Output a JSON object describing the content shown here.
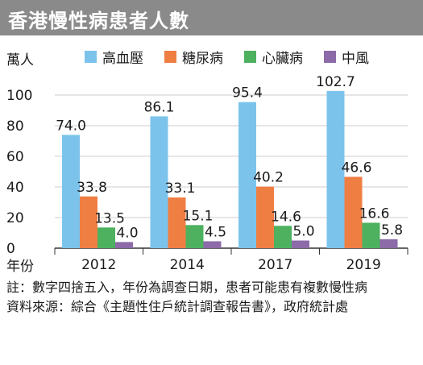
{
  "title": "香港慢性病患者人數",
  "unit_label": "萬人",
  "x_axis_label": "年份",
  "colors": {
    "title_bg": "#8a8a8a",
    "axis": "#333333",
    "grid": "#cccccc"
  },
  "legend": [
    {
      "name": "高血壓",
      "color": "#7cc3ec"
    },
    {
      "name": "糖尿病",
      "color": "#ef7e43"
    },
    {
      "name": "心臟病",
      "color": "#4db15f"
    },
    {
      "name": "中風",
      "color": "#8c6ba8"
    }
  ],
  "chart_data": {
    "type": "bar",
    "categories": [
      "2012",
      "2014",
      "2017",
      "2019"
    ],
    "series": [
      {
        "name": "高血壓",
        "values": [
          74.0,
          86.1,
          95.4,
          102.7
        ],
        "labels": [
          "74.0",
          "86.1",
          "95.4",
          "102.7"
        ]
      },
      {
        "name": "糖尿病",
        "values": [
          33.8,
          33.1,
          40.2,
          46.6
        ],
        "labels": [
          "33.8",
          "33.1",
          "40.2",
          "46.6"
        ]
      },
      {
        "name": "心臟病",
        "values": [
          13.5,
          15.1,
          14.6,
          16.6
        ],
        "labels": [
          "13.5",
          "15.1",
          "14.6",
          "16.6"
        ]
      },
      {
        "name": "中風",
        "values": [
          4.0,
          4.5,
          5.0,
          5.8
        ],
        "labels": [
          "4.0",
          "4.5",
          "5.0",
          "5.8"
        ]
      }
    ],
    "ylim": [
      0,
      100
    ],
    "yticks": [
      "0",
      "20",
      "40",
      "60",
      "80",
      "100"
    ],
    "ylabel": "萬人",
    "xlabel": "年份",
    "grid": true
  },
  "notes": [
    {
      "key": "註：",
      "text": "數字四捨五入，年份為調查日期，患者可能患有複數慢性病"
    },
    {
      "key": "資料來源：",
      "text": "綜合《主題性住戶統計調查報告書》，政府統計處"
    }
  ]
}
